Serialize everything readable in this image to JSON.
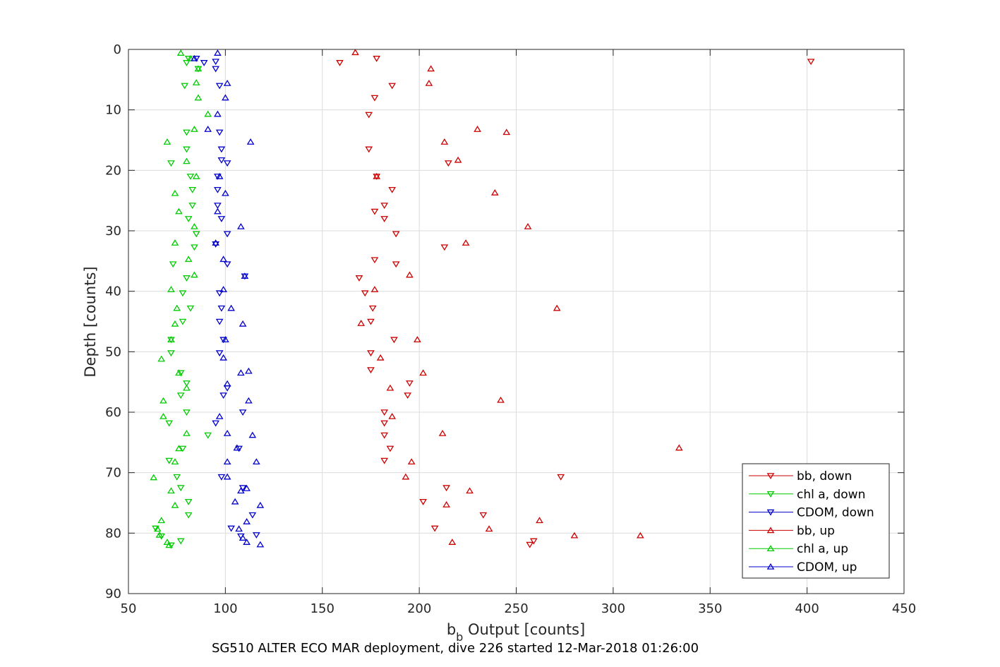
{
  "chart_data": {
    "type": "scatter",
    "title": "",
    "caption": "SG510 ALTER ECO MAR deployment, dive 226 started 12-Mar-2018 01:26:00",
    "xlabel_main": "b",
    "xlabel_sub": "b",
    "xlabel_rest": " Output [counts]",
    "ylabel": "Depth [counts]",
    "xlim": [
      50,
      450
    ],
    "ylim": [
      0,
      90
    ],
    "y_reversed": true,
    "grid": true,
    "legend_position": "bottom-right",
    "xticks": [
      "50",
      "100",
      "150",
      "200",
      "250",
      "300",
      "350",
      "400",
      "450"
    ],
    "yticks": [
      "0",
      "10",
      "20",
      "30",
      "40",
      "50",
      "60",
      "70",
      "80",
      "90"
    ],
    "series": [
      {
        "name": "bb, down",
        "marker": "triangle-down",
        "color": "#cc0000",
        "points": [
          [
            178,
            1.5
          ],
          [
            159,
            2.2
          ],
          [
            402,
            2
          ],
          [
            186,
            6
          ],
          [
            177,
            8
          ],
          [
            174,
            10.8
          ],
          [
            174,
            16.5
          ],
          [
            215,
            18.8
          ],
          [
            178,
            21
          ],
          [
            186,
            23.2
          ],
          [
            182,
            25.8
          ],
          [
            177,
            26.8
          ],
          [
            182,
            28
          ],
          [
            188,
            30.5
          ],
          [
            213,
            32.7
          ],
          [
            177,
            34.8
          ],
          [
            188,
            35.5
          ],
          [
            169,
            37.8
          ],
          [
            172,
            40.3
          ],
          [
            176,
            42.8
          ],
          [
            175,
            45
          ],
          [
            187,
            48
          ],
          [
            175,
            50.2
          ],
          [
            175,
            53
          ],
          [
            195,
            55.2
          ],
          [
            194,
            57.2
          ],
          [
            182,
            60
          ],
          [
            182,
            61.8
          ],
          [
            182,
            63.8
          ],
          [
            185,
            66
          ],
          [
            182,
            68
          ],
          [
            273,
            70.7
          ],
          [
            214,
            72.5
          ],
          [
            202,
            74.8
          ],
          [
            233,
            77
          ],
          [
            208,
            79.2
          ],
          [
            259,
            81.3
          ],
          [
            257,
            81.9
          ]
        ]
      },
      {
        "name": "chl a, down",
        "marker": "triangle-down",
        "color": "#00cc00",
        "points": [
          [
            81,
            1.5
          ],
          [
            80,
            2.2
          ],
          [
            86,
            3.2
          ],
          [
            79,
            6
          ],
          [
            80,
            13.7
          ],
          [
            72,
            18.8
          ],
          [
            80,
            16.5
          ],
          [
            82,
            21
          ],
          [
            83,
            23.2
          ],
          [
            83,
            25.8
          ],
          [
            81,
            28
          ],
          [
            85,
            30.5
          ],
          [
            84,
            32.7
          ],
          [
            73,
            35.5
          ],
          [
            80,
            37.8
          ],
          [
            78,
            40.3
          ],
          [
            82,
            42.8
          ],
          [
            78,
            45
          ],
          [
            72,
            48
          ],
          [
            72,
            50.2
          ],
          [
            77,
            53.5
          ],
          [
            80,
            55.2
          ],
          [
            77,
            57.2
          ],
          [
            80,
            60
          ],
          [
            71,
            61.8
          ],
          [
            91,
            63.8
          ],
          [
            78,
            66
          ],
          [
            71,
            68
          ],
          [
            75,
            70.7
          ],
          [
            77,
            72.5
          ],
          [
            81,
            74.8
          ],
          [
            81,
            77
          ],
          [
            64,
            79.2
          ],
          [
            67,
            80.5
          ],
          [
            77,
            81.3
          ],
          [
            72,
            82
          ]
        ]
      },
      {
        "name": "CDOM, down",
        "marker": "triangle-down",
        "color": "#0000cc",
        "points": [
          [
            85,
            1.5
          ],
          [
            89,
            2.2
          ],
          [
            95,
            2
          ],
          [
            95,
            3.2
          ],
          [
            97,
            6
          ],
          [
            97,
            13.7
          ],
          [
            98,
            16.5
          ],
          [
            98,
            18.3
          ],
          [
            101,
            18.8
          ],
          [
            96,
            21
          ],
          [
            96,
            23.2
          ],
          [
            96,
            25.8
          ],
          [
            98,
            28
          ],
          [
            101,
            30.5
          ],
          [
            95,
            32.2
          ],
          [
            101,
            35.5
          ],
          [
            110,
            37.5
          ],
          [
            97,
            40.3
          ],
          [
            98,
            42.8
          ],
          [
            97,
            45
          ],
          [
            99,
            48
          ],
          [
            97,
            50.2
          ],
          [
            101,
            56
          ],
          [
            99,
            57.2
          ],
          [
            109,
            60
          ],
          [
            95,
            61.8
          ],
          [
            107,
            66
          ],
          [
            98,
            70.7
          ],
          [
            109,
            72.5
          ],
          [
            114,
            77
          ],
          [
            103,
            79.2
          ],
          [
            108,
            80.5
          ],
          [
            116,
            80.3
          ]
        ]
      },
      {
        "name": "bb, up",
        "marker": "triangle-up",
        "color": "#cc0000",
        "points": [
          [
            167,
            0.5
          ],
          [
            206,
            3.2
          ],
          [
            205,
            5.6
          ],
          [
            230,
            13.2
          ],
          [
            245,
            13.7
          ],
          [
            213,
            15.3
          ],
          [
            220,
            18.3
          ],
          [
            178,
            21
          ],
          [
            239,
            23.7
          ],
          [
            256,
            29.3
          ],
          [
            224,
            32
          ],
          [
            195,
            37.3
          ],
          [
            177,
            39.7
          ],
          [
            271,
            42.8
          ],
          [
            170,
            45.3
          ],
          [
            199,
            48
          ],
          [
            180,
            51
          ],
          [
            202,
            53.5
          ],
          [
            185,
            56
          ],
          [
            242,
            58
          ],
          [
            186,
            60.7
          ],
          [
            212,
            63.5
          ],
          [
            334,
            65.9
          ],
          [
            196,
            68.2
          ],
          [
            193,
            70.7
          ],
          [
            226,
            73
          ],
          [
            214,
            75.3
          ],
          [
            262,
            77.9
          ],
          [
            236,
            79.3
          ],
          [
            280,
            80.4
          ],
          [
            314,
            80.4
          ],
          [
            217,
            81.5
          ]
        ]
      },
      {
        "name": "chl a, up",
        "marker": "triangle-up",
        "color": "#00cc00",
        "points": [
          [
            77,
            0.6
          ],
          [
            82,
            1.5
          ],
          [
            86,
            3.2
          ],
          [
            85,
            5.5
          ],
          [
            86,
            8
          ],
          [
            91,
            10.7
          ],
          [
            84,
            13.2
          ],
          [
            70,
            15.3
          ],
          [
            80,
            18.5
          ],
          [
            85,
            21
          ],
          [
            74,
            23.8
          ],
          [
            76,
            26.8
          ],
          [
            84,
            29.3
          ],
          [
            74,
            32
          ],
          [
            81,
            34.7
          ],
          [
            84,
            37.3
          ],
          [
            72,
            39.7
          ],
          [
            75,
            42.8
          ],
          [
            74,
            45.4
          ],
          [
            72,
            48
          ],
          [
            67,
            51.2
          ],
          [
            76,
            53.5
          ],
          [
            80,
            56
          ],
          [
            68,
            58.1
          ],
          [
            68,
            60.7
          ],
          [
            80,
            63.5
          ],
          [
            76,
            66
          ],
          [
            74,
            68.2
          ],
          [
            63,
            70.8
          ],
          [
            72,
            73
          ],
          [
            74,
            75.4
          ],
          [
            67,
            77.9
          ],
          [
            65,
            79.3
          ],
          [
            66,
            80.3
          ],
          [
            70,
            81.5
          ],
          [
            71,
            82
          ]
        ]
      },
      {
        "name": "CDOM, up",
        "marker": "triangle-up",
        "color": "#0000cc",
        "points": [
          [
            96,
            0.6
          ],
          [
            84,
            1.5
          ],
          [
            101,
            5.6
          ],
          [
            100,
            8
          ],
          [
            96,
            10.7
          ],
          [
            91,
            13.2
          ],
          [
            113,
            15.3
          ],
          [
            97,
            21
          ],
          [
            100,
            23.8
          ],
          [
            96,
            26.8
          ],
          [
            108,
            29.3
          ],
          [
            95,
            32
          ],
          [
            99,
            34.7
          ],
          [
            110,
            37.5
          ],
          [
            99,
            39.7
          ],
          [
            103,
            42.8
          ],
          [
            109,
            45.4
          ],
          [
            100,
            48
          ],
          [
            99,
            51
          ],
          [
            112,
            53.2
          ],
          [
            108,
            53.5
          ],
          [
            101,
            55.3
          ],
          [
            112,
            58.1
          ],
          [
            97,
            60.7
          ],
          [
            101,
            63.5
          ],
          [
            114,
            63.8
          ],
          [
            106,
            65.9
          ],
          [
            101,
            68.2
          ],
          [
            116,
            68.2
          ],
          [
            101,
            70.7
          ],
          [
            111,
            72.6
          ],
          [
            108,
            73
          ],
          [
            105,
            74.8
          ],
          [
            118,
            75.4
          ],
          [
            111,
            78.1
          ],
          [
            107,
            79.3
          ],
          [
            109,
            80.8
          ],
          [
            111,
            81.5
          ],
          [
            118,
            81.9
          ]
        ]
      }
    ]
  }
}
